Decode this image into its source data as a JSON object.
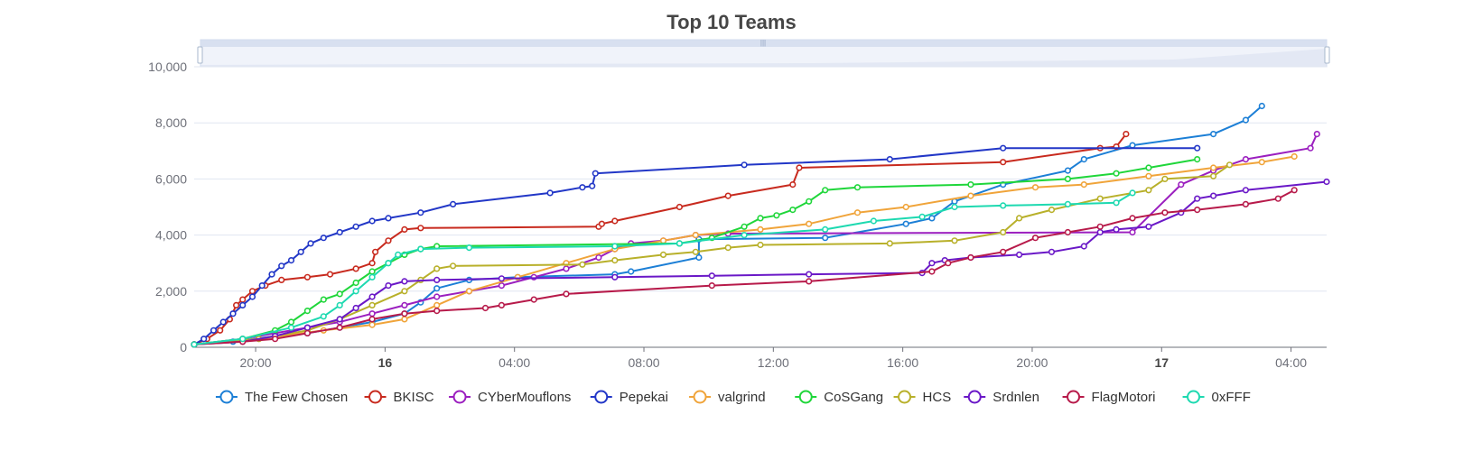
{
  "chart_data": {
    "type": "line",
    "title": "Top 10 Teams",
    "x_ticks": [
      {
        "label": "20:00",
        "t": 1.9,
        "major": false
      },
      {
        "label": "16",
        "t": 5.9,
        "major": true
      },
      {
        "label": "04:00",
        "t": 9.9,
        "major": false
      },
      {
        "label": "08:00",
        "t": 13.9,
        "major": false
      },
      {
        "label": "12:00",
        "t": 17.9,
        "major": false
      },
      {
        "label": "16:00",
        "t": 21.9,
        "major": false
      },
      {
        "label": "20:00",
        "t": 25.9,
        "major": false
      },
      {
        "label": "17",
        "t": 29.9,
        "major": true
      },
      {
        "label": "04:00",
        "t": 33.9,
        "major": false
      }
    ],
    "x_range": [
      0,
      35.0
    ],
    "y_ticks": [
      {
        "label": "0",
        "v": 0
      },
      {
        "label": "2,000",
        "v": 2000
      },
      {
        "label": "4,000",
        "v": 4000
      },
      {
        "label": "6,000",
        "v": 6000
      },
      {
        "label": "8,000",
        "v": 8000
      },
      {
        "label": "10,000",
        "v": 10000
      }
    ],
    "ylim": [
      0,
      10000
    ],
    "grid": true,
    "datazoom_slider": true,
    "legend_position": "bottom",
    "series": [
      {
        "name": "The Few Chosen",
        "color": "#1c7fd6",
        "points": [
          [
            0,
            100
          ],
          [
            1.2,
            200
          ],
          [
            2.5,
            400
          ],
          [
            3.5,
            500
          ],
          [
            4.5,
            700
          ],
          [
            5.5,
            900
          ],
          [
            6.5,
            1200
          ],
          [
            7.0,
            1600
          ],
          [
            7.5,
            2100
          ],
          [
            8.5,
            2400
          ],
          [
            10.0,
            2500
          ],
          [
            13.0,
            2600
          ],
          [
            13.5,
            2700
          ],
          [
            15.6,
            3200
          ],
          [
            15.6,
            3850
          ],
          [
            19.5,
            3900
          ],
          [
            22.0,
            4400
          ],
          [
            22.8,
            4600
          ],
          [
            23.5,
            5200
          ],
          [
            25.0,
            5800
          ],
          [
            27.0,
            6300
          ],
          [
            27.5,
            6700
          ],
          [
            29.0,
            7200
          ],
          [
            31.5,
            7600
          ],
          [
            32.5,
            8100
          ],
          [
            33.0,
            8600
          ]
        ]
      },
      {
        "name": "BKISC",
        "color": "#c82a1e",
        "points": [
          [
            0,
            100
          ],
          [
            0.4,
            300
          ],
          [
            0.8,
            600
          ],
          [
            1.1,
            1000
          ],
          [
            1.3,
            1500
          ],
          [
            1.5,
            1700
          ],
          [
            1.8,
            2000
          ],
          [
            2.2,
            2200
          ],
          [
            2.7,
            2400
          ],
          [
            3.5,
            2500
          ],
          [
            4.2,
            2600
          ],
          [
            5.0,
            2800
          ],
          [
            5.5,
            3000
          ],
          [
            5.6,
            3400
          ],
          [
            6.0,
            3800
          ],
          [
            6.5,
            4200
          ],
          [
            7.0,
            4250
          ],
          [
            12.5,
            4300
          ],
          [
            12.6,
            4400
          ],
          [
            13.0,
            4500
          ],
          [
            15.0,
            5000
          ],
          [
            16.5,
            5400
          ],
          [
            18.5,
            5800
          ],
          [
            18.7,
            6400
          ],
          [
            25.0,
            6600
          ],
          [
            28.0,
            7100
          ],
          [
            28.5,
            7150
          ],
          [
            28.8,
            7600
          ]
        ]
      },
      {
        "name": "CYberMouflons",
        "color": "#9b1fbf",
        "points": [
          [
            0,
            100
          ],
          [
            1.5,
            300
          ],
          [
            2.5,
            500
          ],
          [
            3.5,
            700
          ],
          [
            4.5,
            900
          ],
          [
            5.5,
            1200
          ],
          [
            6.5,
            1500
          ],
          [
            7.5,
            1800
          ],
          [
            8.5,
            2000
          ],
          [
            9.5,
            2200
          ],
          [
            10.5,
            2500
          ],
          [
            11.5,
            2800
          ],
          [
            12.5,
            3200
          ],
          [
            13.0,
            3500
          ],
          [
            13.5,
            3700
          ],
          [
            14.5,
            3800
          ],
          [
            15.5,
            4000
          ],
          [
            16.5,
            4050
          ],
          [
            29.0,
            4100
          ],
          [
            30.5,
            5800
          ],
          [
            31.5,
            6300
          ],
          [
            32.5,
            6700
          ],
          [
            34.5,
            7100
          ],
          [
            34.7,
            7600
          ]
        ]
      },
      {
        "name": "Pepekai",
        "color": "#2237c7",
        "points": [
          [
            0,
            100
          ],
          [
            0.3,
            300
          ],
          [
            0.6,
            600
          ],
          [
            0.9,
            900
          ],
          [
            1.2,
            1200
          ],
          [
            1.5,
            1500
          ],
          [
            1.8,
            1800
          ],
          [
            2.1,
            2200
          ],
          [
            2.4,
            2600
          ],
          [
            2.7,
            2900
          ],
          [
            3.0,
            3100
          ],
          [
            3.3,
            3400
          ],
          [
            3.6,
            3700
          ],
          [
            4.0,
            3900
          ],
          [
            4.5,
            4100
          ],
          [
            5.0,
            4300
          ],
          [
            5.5,
            4500
          ],
          [
            6.0,
            4600
          ],
          [
            7.0,
            4800
          ],
          [
            8.0,
            5100
          ],
          [
            11.0,
            5500
          ],
          [
            12.0,
            5700
          ],
          [
            12.3,
            5750
          ],
          [
            12.4,
            6200
          ],
          [
            17.0,
            6500
          ],
          [
            21.5,
            6700
          ],
          [
            25.0,
            7100
          ],
          [
            31.0,
            7100
          ]
        ]
      },
      {
        "name": "valgrind",
        "color": "#f0a43a",
        "points": [
          [
            0,
            100
          ],
          [
            2.0,
            300
          ],
          [
            4.0,
            600
          ],
          [
            5.5,
            800
          ],
          [
            6.5,
            1000
          ],
          [
            7.5,
            1500
          ],
          [
            8.5,
            2000
          ],
          [
            10.0,
            2500
          ],
          [
            11.5,
            3000
          ],
          [
            13.0,
            3500
          ],
          [
            14.5,
            3800
          ],
          [
            15.5,
            4000
          ],
          [
            17.5,
            4200
          ],
          [
            19.0,
            4400
          ],
          [
            20.5,
            4800
          ],
          [
            22.0,
            5000
          ],
          [
            24.0,
            5400
          ],
          [
            26.0,
            5700
          ],
          [
            27.5,
            5800
          ],
          [
            29.5,
            6100
          ],
          [
            31.5,
            6400
          ],
          [
            33.0,
            6600
          ],
          [
            34.0,
            6800
          ]
        ]
      },
      {
        "name": "CoSGang",
        "color": "#1fd63a",
        "points": [
          [
            0,
            100
          ],
          [
            1.5,
            300
          ],
          [
            2.5,
            600
          ],
          [
            3.0,
            900
          ],
          [
            3.5,
            1300
          ],
          [
            4.0,
            1700
          ],
          [
            4.5,
            1900
          ],
          [
            5.0,
            2300
          ],
          [
            5.5,
            2700
          ],
          [
            6.0,
            3000
          ],
          [
            6.5,
            3300
          ],
          [
            7.0,
            3500
          ],
          [
            7.5,
            3600
          ],
          [
            15.0,
            3700
          ],
          [
            16.0,
            3900
          ],
          [
            17.0,
            4300
          ],
          [
            17.5,
            4600
          ],
          [
            18.0,
            4700
          ],
          [
            18.5,
            4900
          ],
          [
            19.0,
            5200
          ],
          [
            19.5,
            5600
          ],
          [
            20.5,
            5700
          ],
          [
            24.0,
            5800
          ],
          [
            27.0,
            6000
          ],
          [
            28.5,
            6200
          ],
          [
            29.5,
            6400
          ],
          [
            31.0,
            6700
          ]
        ]
      },
      {
        "name": "HCS",
        "color": "#b8b02a",
        "points": [
          [
            0,
            100
          ],
          [
            2.0,
            300
          ],
          [
            3.5,
            600
          ],
          [
            4.5,
            1000
          ],
          [
            5.5,
            1500
          ],
          [
            6.5,
            2000
          ],
          [
            7.0,
            2400
          ],
          [
            7.5,
            2800
          ],
          [
            8.0,
            2900
          ],
          [
            12.0,
            2950
          ],
          [
            13.0,
            3100
          ],
          [
            14.5,
            3300
          ],
          [
            15.5,
            3400
          ],
          [
            16.5,
            3550
          ],
          [
            17.5,
            3650
          ],
          [
            21.5,
            3700
          ],
          [
            23.5,
            3800
          ],
          [
            25.0,
            4100
          ],
          [
            25.5,
            4600
          ],
          [
            26.5,
            4900
          ],
          [
            28.0,
            5300
          ],
          [
            29.5,
            5600
          ],
          [
            30.0,
            6000
          ],
          [
            31.5,
            6100
          ],
          [
            32.0,
            6500
          ]
        ]
      },
      {
        "name": "Srdnlen",
        "color": "#6a18c7",
        "points": [
          [
            0,
            100
          ],
          [
            1.5,
            200
          ],
          [
            2.5,
            400
          ],
          [
            3.5,
            700
          ],
          [
            4.5,
            1000
          ],
          [
            5.0,
            1400
          ],
          [
            5.5,
            1800
          ],
          [
            6.0,
            2200
          ],
          [
            6.5,
            2350
          ],
          [
            7.5,
            2400
          ],
          [
            9.5,
            2450
          ],
          [
            13.0,
            2500
          ],
          [
            16.0,
            2550
          ],
          [
            19.0,
            2600
          ],
          [
            22.5,
            2650
          ],
          [
            22.8,
            3000
          ],
          [
            23.2,
            3100
          ],
          [
            24.0,
            3200
          ],
          [
            25.5,
            3300
          ],
          [
            26.5,
            3400
          ],
          [
            27.5,
            3600
          ],
          [
            28.0,
            4100
          ],
          [
            28.5,
            4200
          ],
          [
            29.5,
            4300
          ],
          [
            30.5,
            4800
          ],
          [
            31.0,
            5300
          ],
          [
            31.5,
            5400
          ],
          [
            32.5,
            5600
          ],
          [
            35.0,
            5900
          ]
        ]
      },
      {
        "name": "FlagMotori",
        "color": "#b71a4a",
        "points": [
          [
            0,
            100
          ],
          [
            1.5,
            200
          ],
          [
            2.5,
            300
          ],
          [
            3.5,
            500
          ],
          [
            4.5,
            700
          ],
          [
            5.5,
            1000
          ],
          [
            6.5,
            1200
          ],
          [
            7.5,
            1300
          ],
          [
            9.0,
            1400
          ],
          [
            9.5,
            1500
          ],
          [
            10.5,
            1700
          ],
          [
            11.5,
            1900
          ],
          [
            16.0,
            2200
          ],
          [
            19.0,
            2350
          ],
          [
            22.8,
            2700
          ],
          [
            23.3,
            3000
          ],
          [
            24.0,
            3200
          ],
          [
            25.0,
            3400
          ],
          [
            26.0,
            3900
          ],
          [
            27.0,
            4100
          ],
          [
            28.0,
            4300
          ],
          [
            29.0,
            4600
          ],
          [
            30.0,
            4800
          ],
          [
            31.0,
            4900
          ],
          [
            32.5,
            5100
          ],
          [
            33.5,
            5300
          ],
          [
            34.0,
            5600
          ]
        ]
      },
      {
        "name": "0xFFF",
        "color": "#1dd9b0",
        "points": [
          [
            0,
            100
          ],
          [
            1.5,
            300
          ],
          [
            3.0,
            700
          ],
          [
            4.0,
            1100
          ],
          [
            4.5,
            1500
          ],
          [
            5.0,
            2000
          ],
          [
            5.5,
            2500
          ],
          [
            6.0,
            3000
          ],
          [
            6.3,
            3300
          ],
          [
            7.0,
            3500
          ],
          [
            8.5,
            3550
          ],
          [
            13.0,
            3600
          ],
          [
            15.0,
            3700
          ],
          [
            17.0,
            4000
          ],
          [
            19.5,
            4200
          ],
          [
            21.0,
            4500
          ],
          [
            22.5,
            4650
          ],
          [
            23.5,
            5000
          ],
          [
            25.0,
            5050
          ],
          [
            27.0,
            5100
          ],
          [
            28.5,
            5150
          ],
          [
            29.0,
            5500
          ]
        ]
      }
    ]
  }
}
